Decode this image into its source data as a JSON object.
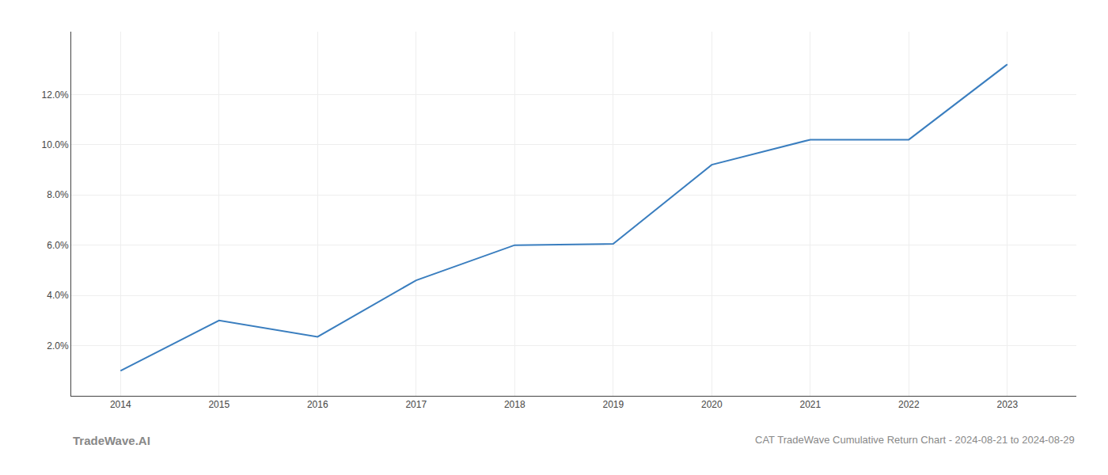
{
  "chart_data": {
    "type": "line",
    "title": "CAT TradeWave Cumulative Return Chart - 2024-08-21 to 2024-08-29",
    "annotations": [
      "TradeWave.AI"
    ],
    "x": [
      2014,
      2015,
      2016,
      2017,
      2018,
      2019,
      2020,
      2021,
      2022,
      2023
    ],
    "values": [
      1.0,
      3.0,
      2.35,
      4.6,
      6.0,
      6.05,
      9.2,
      10.2,
      10.2,
      13.2
    ],
    "color": "#3a7ebf",
    "xlim": [
      2013.5,
      2023.7
    ],
    "ylim": [
      0.0,
      14.5
    ],
    "xticks": [
      2014,
      2015,
      2016,
      2017,
      2018,
      2019,
      2020,
      2021,
      2022,
      2023
    ],
    "yticks": [
      {
        "value": 2.0,
        "label": "2.0%"
      },
      {
        "value": 4.0,
        "label": "4.0%"
      },
      {
        "value": 6.0,
        "label": "6.0%"
      },
      {
        "value": 8.0,
        "label": "8.0%"
      },
      {
        "value": 10.0,
        "label": "10.0%"
      },
      {
        "value": 12.0,
        "label": "12.0%"
      }
    ],
    "grid": true
  }
}
